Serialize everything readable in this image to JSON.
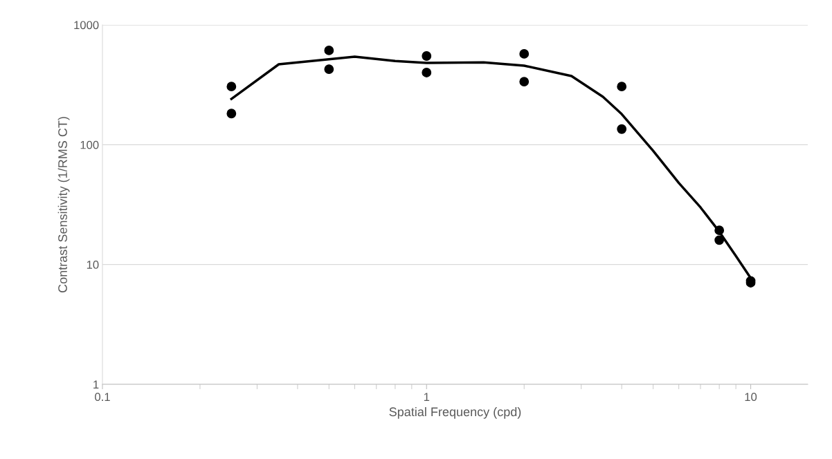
{
  "chart_data": {
    "type": "scatter",
    "xlabel": "Spatial Frequency (cpd)",
    "ylabel": "Contrast Sensitivity (1/RMS CT)",
    "log": "xy",
    "xlim": [
      0.1,
      15
    ],
    "xticks": [
      0.1,
      1,
      10
    ],
    "ylim": [
      1,
      1000
    ],
    "yticks": [
      1,
      10,
      100,
      1000
    ],
    "grid": "y",
    "series": [
      {
        "marker": "circle",
        "color": "#000000",
        "x": [
          0.25,
          0.25,
          0.5,
          0.5,
          1,
          1,
          2,
          2,
          4,
          4,
          8,
          8,
          10,
          10
        ],
        "values": [
          306,
          182,
          612,
          427,
          550,
          400,
          573,
          336,
          306,
          135,
          19.3,
          16.0,
          7.3,
          7.05
        ]
      },
      {
        "type": "line",
        "color": "#000000",
        "marker": "none",
        "line_style": "solid",
        "x": [
          0.25,
          0.35,
          0.6,
          0.8,
          1,
          1.5,
          2,
          2.8,
          3.5,
          4,
          5,
          6,
          7,
          8,
          9,
          10
        ],
        "values": [
          241,
          469,
          543,
          500,
          482,
          487,
          457,
          374,
          251,
          180,
          89,
          48,
          30,
          18.8,
          11.8,
          7.7
        ]
      }
    ]
  }
}
